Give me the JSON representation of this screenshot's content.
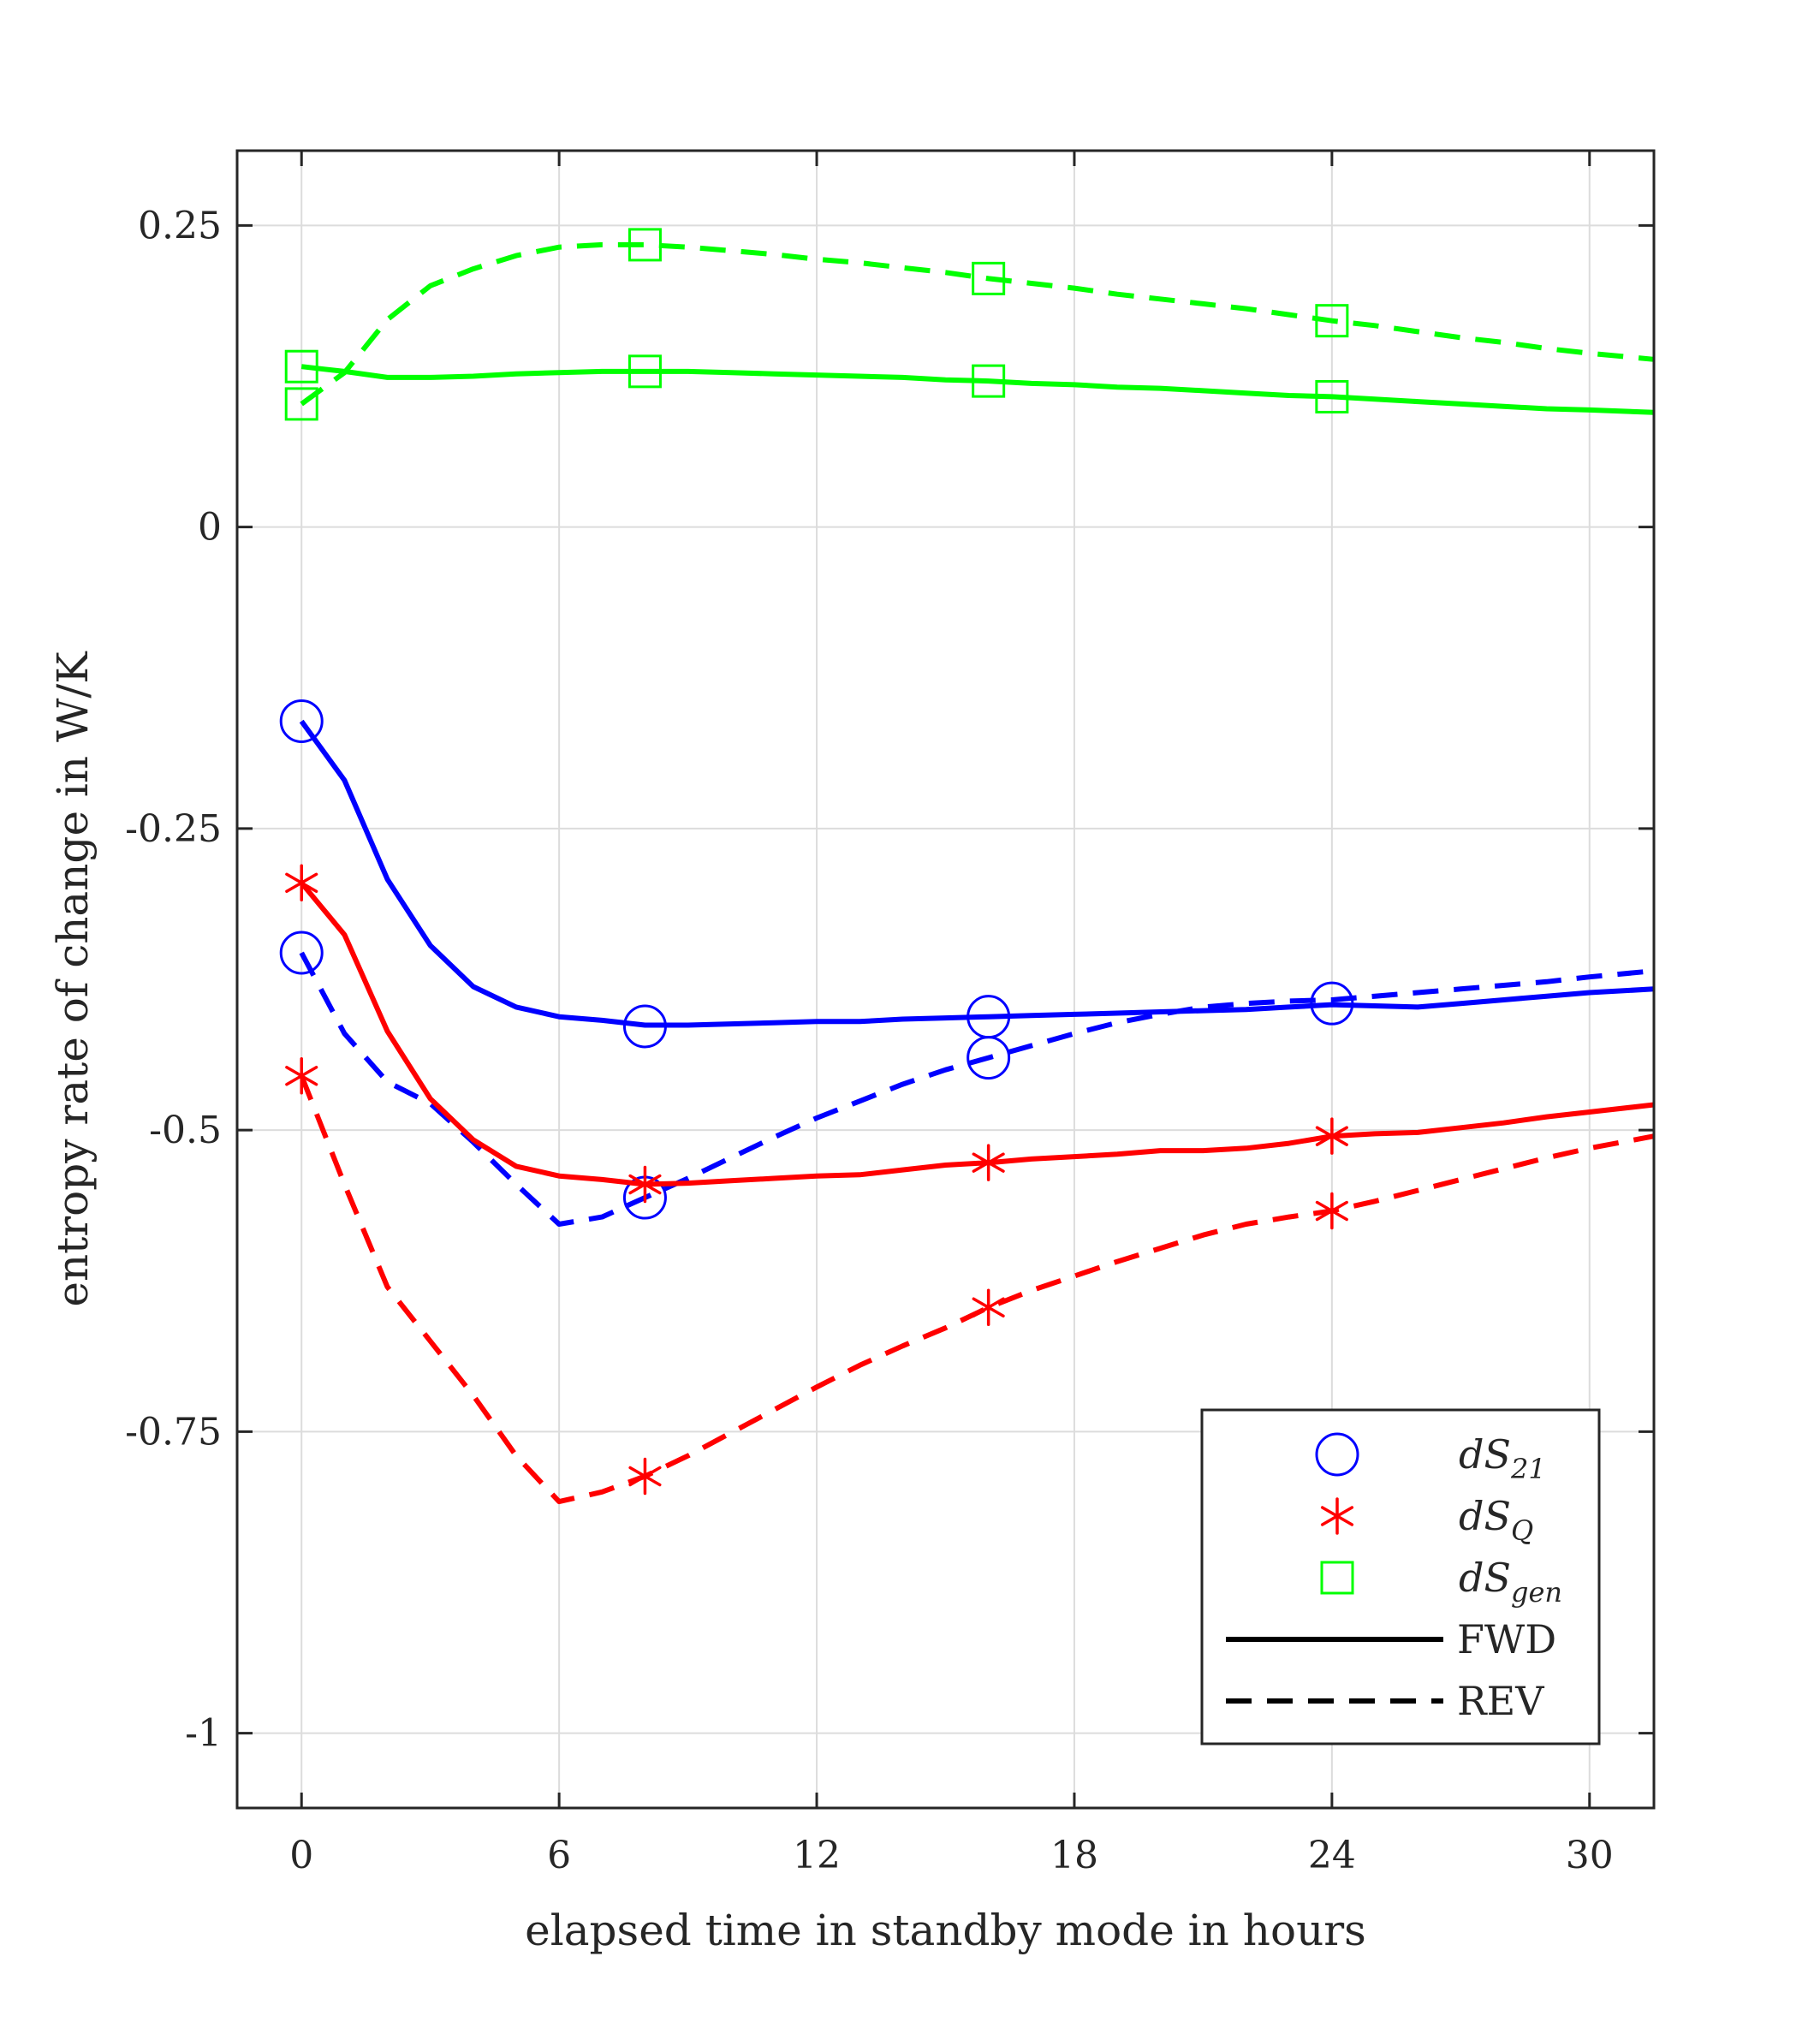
{
  "chart_data": {
    "type": "line",
    "xlabel": "elapsed time in standby mode in hours",
    "ylabel": "entropy rate of change in W/K",
    "xlim": [
      -1.5,
      31.5
    ],
    "ylim": [
      -1.062,
      0.312
    ],
    "xticks": [
      0,
      6,
      12,
      18,
      24,
      30
    ],
    "yticks": [
      0.25,
      0,
      -0.25,
      -0.5,
      -0.75,
      -1
    ],
    "xtick_labels": [
      "0",
      "6",
      "12",
      "18",
      "24",
      "30"
    ],
    "ytick_labels": [
      "0.25",
      "0",
      "-0.25",
      "-0.5",
      "-0.75",
      "-1"
    ],
    "grid": true,
    "legend_position": "bottom-right",
    "legend": {
      "entries": [
        {
          "base": "dS",
          "sub": "21",
          "marker": "circle",
          "color": "#0000ff"
        },
        {
          "base": "dS",
          "sub": "Q",
          "marker": "asterisk",
          "color": "#ff0000"
        },
        {
          "base": "dS",
          "sub": "gen",
          "marker": "square",
          "color": "#00ff00"
        },
        {
          "label": "FWD",
          "linestyle": "solid",
          "color": "#000000"
        },
        {
          "label": "REV",
          "linestyle": "dashed",
          "color": "#000000"
        }
      ]
    },
    "series": [
      {
        "name": "dS21 FWD",
        "color": "#0000ff",
        "linestyle": "solid",
        "marker": "circle",
        "x": [
          0,
          1,
          2,
          3,
          4,
          5,
          6,
          7,
          8,
          9,
          10,
          11,
          12,
          13,
          14,
          15,
          16,
          17,
          18,
          19,
          20,
          21,
          22,
          23,
          24,
          25,
          26,
          27,
          28,
          29,
          30,
          31.5
        ],
        "y": [
          -0.161,
          -0.21,
          -0.292,
          -0.347,
          -0.381,
          -0.398,
          -0.406,
          -0.409,
          -0.413,
          -0.413,
          -0.412,
          -0.411,
          -0.41,
          -0.41,
          -0.408,
          -0.407,
          -0.406,
          -0.405,
          -0.404,
          -0.403,
          -0.402,
          -0.401,
          -0.4,
          -0.398,
          -0.396,
          -0.397,
          -0.398,
          -0.395,
          -0.392,
          -0.389,
          -0.386,
          -0.383
        ],
        "marker_x": [
          0,
          8,
          16,
          24
        ],
        "marker_y": [
          -0.161,
          -0.414,
          -0.406,
          -0.395
        ]
      },
      {
        "name": "dS21 REV",
        "color": "#0000ff",
        "linestyle": "dashed",
        "marker": "circle",
        "x": [
          0,
          1,
          2,
          3,
          4,
          5,
          6,
          7,
          8,
          9,
          10,
          11,
          12,
          13,
          14,
          15,
          16,
          17,
          18,
          19,
          20,
          21,
          22,
          23,
          24,
          25,
          26,
          27,
          28,
          29,
          30,
          31.5
        ],
        "y": [
          -0.353,
          -0.42,
          -0.46,
          -0.478,
          -0.51,
          -0.545,
          -0.578,
          -0.572,
          -0.556,
          -0.54,
          -0.523,
          -0.506,
          -0.49,
          -0.476,
          -0.462,
          -0.45,
          -0.44,
          -0.43,
          -0.42,
          -0.411,
          -0.404,
          -0.398,
          -0.395,
          -0.393,
          -0.392,
          -0.389,
          -0.386,
          -0.383,
          -0.38,
          -0.377,
          -0.373,
          -0.368
        ],
        "marker_x": [
          0,
          8,
          16
        ],
        "marker_y": [
          -0.353,
          -0.556,
          -0.44
        ]
      },
      {
        "name": "dSQ FWD",
        "color": "#ff0000",
        "linestyle": "solid",
        "marker": "asterisk",
        "x": [
          0,
          1,
          2,
          3,
          4,
          5,
          6,
          7,
          8,
          9,
          10,
          11,
          12,
          13,
          14,
          15,
          16,
          17,
          18,
          19,
          20,
          21,
          22,
          23,
          24,
          25,
          26,
          27,
          28,
          29,
          30,
          31.5
        ],
        "y": [
          -0.295,
          -0.338,
          -0.418,
          -0.474,
          -0.508,
          -0.53,
          -0.538,
          -0.541,
          -0.545,
          -0.544,
          -0.542,
          -0.54,
          -0.538,
          -0.537,
          -0.533,
          -0.529,
          -0.527,
          -0.524,
          -0.522,
          -0.52,
          -0.517,
          -0.517,
          -0.515,
          -0.511,
          -0.505,
          -0.503,
          -0.502,
          -0.498,
          -0.494,
          -0.489,
          -0.485,
          -0.479
        ],
        "marker_x": [
          0,
          8,
          16,
          24
        ],
        "marker_y": [
          -0.295,
          -0.545,
          -0.527,
          -0.505
        ]
      },
      {
        "name": "dSQ REV",
        "color": "#ff0000",
        "linestyle": "dashed",
        "marker": "asterisk",
        "x": [
          0,
          1,
          2,
          3,
          4,
          5,
          6,
          7,
          8,
          9,
          10,
          11,
          12,
          13,
          14,
          15,
          16,
          17,
          18,
          19,
          20,
          21,
          22,
          23,
          24,
          25,
          26,
          27,
          28,
          29,
          30,
          31.5
        ],
        "y": [
          -0.455,
          -0.545,
          -0.63,
          -0.675,
          -0.72,
          -0.77,
          -0.808,
          -0.8,
          -0.787,
          -0.77,
          -0.751,
          -0.732,
          -0.713,
          -0.695,
          -0.679,
          -0.664,
          -0.647,
          -0.633,
          -0.621,
          -0.609,
          -0.598,
          -0.587,
          -0.578,
          -0.572,
          -0.567,
          -0.559,
          -0.55,
          -0.541,
          -0.532,
          -0.523,
          -0.515,
          -0.505
        ],
        "marker_x": [
          0,
          8,
          16,
          24
        ],
        "marker_y": [
          -0.455,
          -0.787,
          -0.647,
          -0.567
        ]
      },
      {
        "name": "dSgen FWD",
        "color": "#00ff00",
        "linestyle": "solid",
        "marker": "square",
        "x": [
          0,
          1,
          2,
          3,
          4,
          5,
          6,
          7,
          8,
          9,
          10,
          11,
          12,
          13,
          14,
          15,
          16,
          17,
          18,
          19,
          20,
          21,
          22,
          23,
          24,
          25,
          26,
          27,
          28,
          29,
          30,
          31.5
        ],
        "y": [
          0.133,
          0.129,
          0.124,
          0.124,
          0.125,
          0.127,
          0.128,
          0.129,
          0.129,
          0.129,
          0.128,
          0.127,
          0.126,
          0.125,
          0.124,
          0.122,
          0.121,
          0.119,
          0.118,
          0.116,
          0.115,
          0.113,
          0.111,
          0.109,
          0.108,
          0.106,
          0.104,
          0.102,
          0.1,
          0.098,
          0.097,
          0.095
        ],
        "marker_x": [
          0,
          8,
          16,
          24
        ],
        "marker_y": [
          0.133,
          0.129,
          0.121,
          0.108
        ]
      },
      {
        "name": "dSgen REV",
        "color": "#00ff00",
        "linestyle": "dashed",
        "marker": "square",
        "x": [
          0,
          1,
          2,
          3,
          4,
          5,
          6,
          7,
          8,
          9,
          10,
          11,
          12,
          13,
          14,
          15,
          16,
          17,
          18,
          19,
          20,
          21,
          22,
          23,
          24,
          25,
          26,
          27,
          28,
          29,
          30,
          31.5
        ],
        "y": [
          0.102,
          0.128,
          0.172,
          0.2,
          0.214,
          0.225,
          0.232,
          0.234,
          0.234,
          0.232,
          0.229,
          0.226,
          0.222,
          0.219,
          0.215,
          0.211,
          0.206,
          0.202,
          0.198,
          0.193,
          0.189,
          0.185,
          0.181,
          0.176,
          0.171,
          0.167,
          0.162,
          0.157,
          0.153,
          0.148,
          0.144,
          0.139
        ],
        "marker_x": [
          0,
          8,
          16,
          24
        ],
        "marker_y": [
          0.102,
          0.234,
          0.206,
          0.171
        ]
      }
    ]
  }
}
